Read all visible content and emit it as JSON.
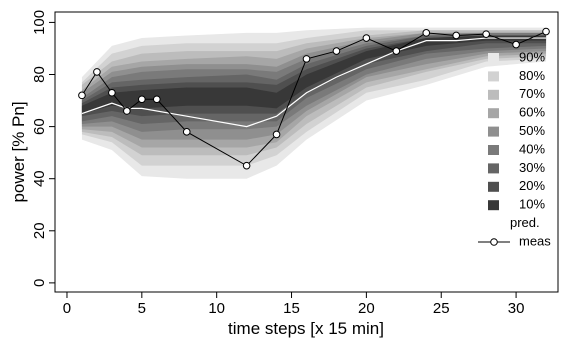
{
  "chart_data": {
    "type": "fan",
    "xlabel": "time steps [x 15 min]",
    "ylabel": "power [% Pn]",
    "xlim": [
      -0.8,
      32.8
    ],
    "ylim": [
      -3.5,
      104
    ],
    "xticks": [
      0,
      5,
      10,
      15,
      20,
      25,
      30
    ],
    "yticks": [
      0,
      20,
      40,
      60,
      80,
      100
    ],
    "x": [
      1,
      3,
      5,
      8,
      12,
      14,
      16,
      20,
      24,
      28,
      32
    ],
    "series": [
      {
        "name": "90%",
        "color": "#e8e8e8",
        "lower": [
          55,
          51,
          41,
          40,
          40,
          45,
          55,
          70,
          76,
          83,
          85
        ],
        "upper": [
          79,
          91,
          94,
          95,
          96,
          96,
          97,
          98,
          98,
          98,
          98
        ]
      },
      {
        "name": "80%",
        "color": "#d2d2d2",
        "lower": [
          57,
          54,
          45,
          45,
          45,
          49,
          58,
          73,
          78,
          85,
          86
        ],
        "upper": [
          77,
          88,
          91,
          92,
          92,
          92,
          94,
          97,
          97,
          97,
          97
        ]
      },
      {
        "name": "70%",
        "color": "#bcbcbc",
        "lower": [
          58,
          56,
          49,
          49,
          49,
          52,
          61,
          75,
          81,
          86,
          87
        ],
        "upper": [
          76,
          85,
          88,
          89,
          89,
          89,
          92,
          95,
          97,
          97,
          97
        ]
      },
      {
        "name": "60%",
        "color": "#a6a6a6",
        "lower": [
          59,
          58,
          52,
          52,
          52,
          54,
          64,
          77,
          82,
          87,
          88
        ],
        "upper": [
          74,
          83,
          85,
          86,
          87,
          86,
          90,
          94,
          96,
          96,
          96
        ]
      },
      {
        "name": "50%",
        "color": "#8f8f8f",
        "lower": [
          60,
          60,
          55,
          55,
          55,
          57,
          66,
          79,
          84,
          88,
          89
        ],
        "upper": [
          73,
          81,
          83,
          84,
          84,
          83,
          88,
          93,
          96,
          96,
          96
        ]
      },
      {
        "name": "40%",
        "color": "#7a7a7a",
        "lower": [
          61,
          62,
          58,
          59,
          59,
          60,
          68,
          80,
          86,
          89,
          90
        ],
        "upper": [
          71,
          79,
          81,
          82,
          82,
          81,
          86,
          92,
          95,
          96,
          96
        ]
      },
      {
        "name": "30%",
        "color": "#656565",
        "lower": [
          62,
          64,
          61,
          62,
          62,
          62,
          71,
          82,
          88,
          90,
          91
        ],
        "upper": [
          70,
          77,
          78,
          79,
          80,
          78,
          84,
          91,
          95,
          95,
          95
        ]
      },
      {
        "name": "20%",
        "color": "#4f4f4f",
        "lower": [
          64,
          66,
          64,
          65,
          65,
          65,
          73,
          84,
          89,
          92,
          92
        ],
        "upper": [
          69,
          75,
          76,
          77,
          77,
          76,
          82,
          90,
          94,
          95,
          95
        ]
      },
      {
        "name": "10%",
        "color": "#383838",
        "lower": [
          65,
          68,
          67,
          68,
          68,
          67,
          75,
          86,
          91,
          93,
          93
        ],
        "upper": [
          68,
          73,
          74,
          75,
          75,
          73,
          80,
          89,
          94,
          95,
          95
        ]
      }
    ],
    "pred": {
      "name": "pred.",
      "color": "#ffffff",
      "x": [
        1,
        2,
        3,
        4,
        5,
        8,
        12,
        14,
        16,
        18,
        20,
        22,
        24,
        26,
        28,
        30,
        32
      ],
      "values": [
        65,
        67,
        69,
        67,
        67,
        64,
        60,
        64,
        73,
        79,
        84,
        89,
        93,
        93,
        94,
        94,
        94
      ]
    },
    "meas": {
      "name": "meas",
      "color": "#000000",
      "x": [
        1,
        2,
        3,
        4,
        5,
        6,
        8,
        12,
        14,
        16,
        18,
        20,
        22,
        24,
        26,
        28,
        30,
        32
      ],
      "values": [
        72,
        81,
        73,
        66,
        70.5,
        70.5,
        58,
        45,
        57,
        86,
        89,
        94,
        89,
        96,
        95,
        95.5,
        91.5,
        96.5
      ]
    }
  }
}
